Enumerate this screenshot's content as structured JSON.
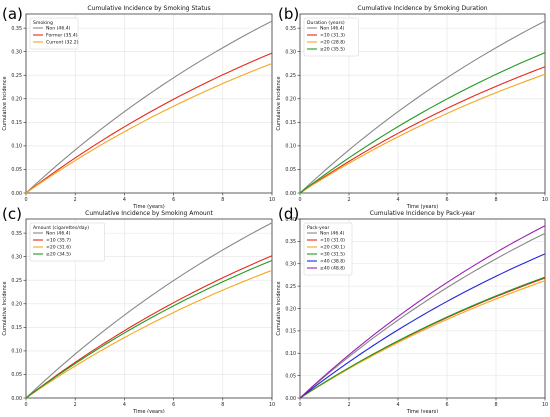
{
  "figure": {
    "panel_letters": [
      "(a)",
      "(b)",
      "(c)",
      "(d)"
    ]
  },
  "chart_data": [
    {
      "type": "line",
      "title": "Cumulative Incidence by Smoking Status",
      "xlabel": "Time (years)",
      "ylabel": "Cumulative Incidence",
      "xlim": [
        0,
        10
      ],
      "ylim": [
        0,
        0.38
      ],
      "xticks": [
        0,
        2,
        4,
        6,
        8,
        10
      ],
      "yticks": [
        0.0,
        0.05,
        0.1,
        0.15,
        0.2,
        0.25,
        0.3,
        0.35
      ],
      "ytick_labels": [
        "0.00",
        "0.05",
        "0.10",
        "0.15",
        "0.20",
        "0.25",
        "0.30",
        "0.35"
      ],
      "grid": true,
      "legend": {
        "title": "Smoking",
        "position": "top-left"
      },
      "series": [
        {
          "name": "Non (46.4)",
          "color": "#888888",
          "end": 0.365
        },
        {
          "name": "Former (35.4)",
          "color": "#e8271c",
          "end": 0.297
        },
        {
          "name": "Current (32.2)",
          "color": "#f5a623",
          "end": 0.275
        }
      ]
    },
    {
      "type": "line",
      "title": "Cumulative Incidence by Smoking Duration",
      "xlabel": "Time (years)",
      "ylabel": "Cumulative Incidence",
      "xlim": [
        0,
        10
      ],
      "ylim": [
        0,
        0.38
      ],
      "xticks": [
        0,
        2,
        4,
        6,
        8,
        10
      ],
      "yticks": [
        0.0,
        0.05,
        0.1,
        0.15,
        0.2,
        0.25,
        0.3,
        0.35
      ],
      "ytick_labels": [
        "0.00",
        "0.05",
        "0.10",
        "0.15",
        "0.20",
        "0.25",
        "0.30",
        "0.35"
      ],
      "grid": true,
      "legend": {
        "title": "Duration (years)",
        "position": "top-left"
      },
      "series": [
        {
          "name": "Non (46.4)",
          "color": "#888888",
          "end": 0.365
        },
        {
          "name": "<10 (31.3)",
          "color": "#e8271c",
          "end": 0.268
        },
        {
          "name": "<20 (28.8)",
          "color": "#f5a623",
          "end": 0.252
        },
        {
          "name": "≥20 (35.5)",
          "color": "#1f9b1f",
          "end": 0.298
        }
      ]
    },
    {
      "type": "line",
      "title": "Cumulative Incidence by Smoking Amount",
      "xlabel": "Time (years)",
      "ylabel": "Cumulative Incidence",
      "xlim": [
        0,
        10
      ],
      "ylim": [
        0,
        0.38
      ],
      "xticks": [
        0,
        2,
        4,
        6,
        8,
        10
      ],
      "yticks": [
        0.0,
        0.05,
        0.1,
        0.15,
        0.2,
        0.25,
        0.3,
        0.35
      ],
      "ytick_labels": [
        "0.00",
        "0.05",
        "0.10",
        "0.15",
        "0.20",
        "0.25",
        "0.30",
        "0.35"
      ],
      "grid": true,
      "legend": {
        "title": "Amount (cigarettes/day)",
        "position": "top-left"
      },
      "series": [
        {
          "name": "Non (46.4)",
          "color": "#888888",
          "end": 0.372
        },
        {
          "name": "<10 (35.7)",
          "color": "#e8271c",
          "end": 0.302
        },
        {
          "name": "<20 (31.6)",
          "color": "#f5a623",
          "end": 0.271
        },
        {
          "name": "≥20 (34.5)",
          "color": "#1f9b1f",
          "end": 0.292
        }
      ]
    },
    {
      "type": "line",
      "title": "Cumulative Incidence by Pack-year",
      "xlabel": "Time (years)",
      "ylabel": "Cumulative Incidence",
      "xlim": [
        0,
        10
      ],
      "ylim": [
        0,
        0.4
      ],
      "xticks": [
        0,
        2,
        4,
        6,
        8,
        10
      ],
      "yticks": [
        0.0,
        0.05,
        0.1,
        0.15,
        0.2,
        0.25,
        0.3,
        0.35,
        0.4
      ],
      "ytick_labels": [
        "0.00",
        "0.05",
        "0.10",
        "0.15",
        "0.20",
        "0.25",
        "0.30",
        "0.35",
        "0.40"
      ],
      "grid": true,
      "legend": {
        "title": "Pack-year",
        "position": "top-left"
      },
      "series": [
        {
          "name": "Non (46.4)",
          "color": "#888888",
          "end": 0.368
        },
        {
          "name": "<10 (31.0)",
          "color": "#e8271c",
          "end": 0.268
        },
        {
          "name": "<20 (30.1)",
          "color": "#f5a623",
          "end": 0.262
        },
        {
          "name": "<30 (31.5)",
          "color": "#1f9b1f",
          "end": 0.27
        },
        {
          "name": "<40 (38.8)",
          "color": "#2222dd",
          "end": 0.322
        },
        {
          "name": "≥40 (48.8)",
          "color": "#9b1fb5",
          "end": 0.385
        }
      ]
    }
  ]
}
